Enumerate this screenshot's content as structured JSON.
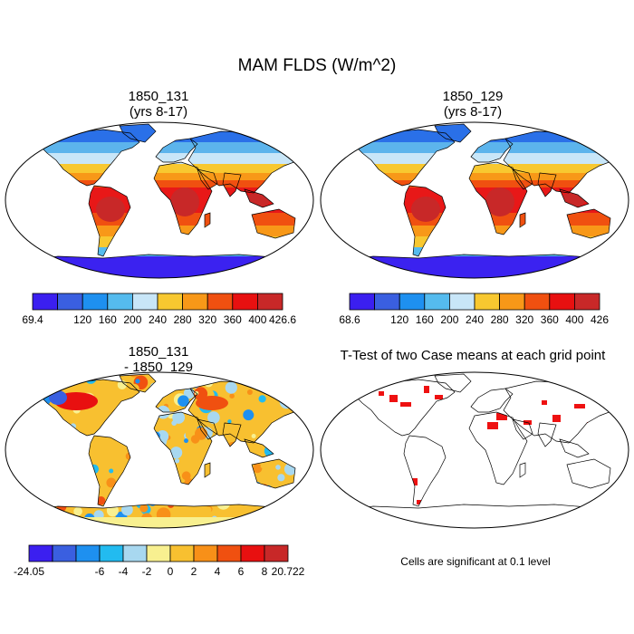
{
  "title": "MAM FLDS (W/m^2)",
  "panels": [
    {
      "line1": "1850_131",
      "line2": "(yrs 8-17)"
    },
    {
      "line1": "1850_129",
      "line2": "(yrs 8-17)"
    },
    {
      "line1": "1850_131",
      "line2": "- 1850_129"
    },
    {
      "line1": "T-Test of two Case means at each grid point",
      "line2": ""
    }
  ],
  "colorbars": [
    {
      "labels": [
        "69.4",
        "120",
        "160",
        "200",
        "240",
        "280",
        "320",
        "360",
        "400",
        "426.6"
      ],
      "colors": [
        "#3b1ff0",
        "#3a5fe0",
        "#1e90f0",
        "#55bbee",
        "#c8e6f8",
        "#f8c830",
        "#f89818",
        "#f05010",
        "#e81010",
        "#c82828"
      ]
    },
    {
      "labels": [
        "68.6",
        "120",
        "160",
        "200",
        "240",
        "280",
        "320",
        "360",
        "400",
        "426"
      ],
      "colors": [
        "#3b1ff0",
        "#3a5fe0",
        "#1e90f0",
        "#55bbee",
        "#c8e6f8",
        "#f8c830",
        "#f89818",
        "#f05010",
        "#e81010",
        "#c82828"
      ]
    },
    {
      "labels": [
        "-24.05",
        "-6",
        "-4",
        "-2",
        "0",
        "2",
        "4",
        "6",
        "8",
        "20.722"
      ],
      "colors": [
        "#3b1ff0",
        "#3a5fe0",
        "#1e90f0",
        "#22bbf0",
        "#a8d8f0",
        "#f8f090",
        "#f8c030",
        "#f89018",
        "#f05010",
        "#e81010",
        "#c82828"
      ]
    }
  ],
  "note": "Cells are significant at 0.1 level",
  "colors": {
    "land_outline": "#000000",
    "significant": "#ee1111"
  }
}
